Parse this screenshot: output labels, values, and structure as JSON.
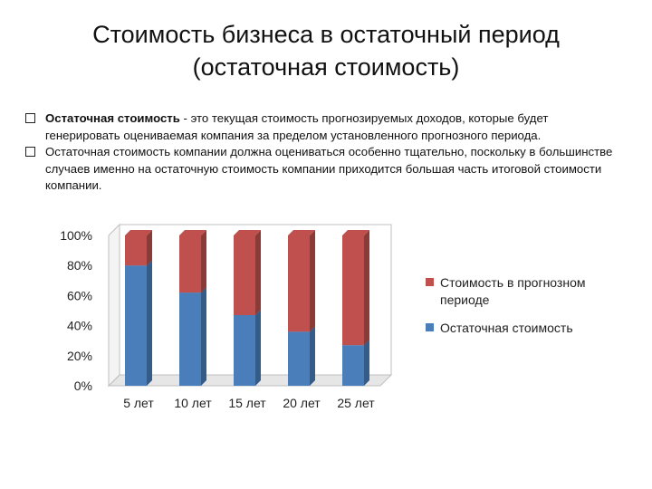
{
  "slide": {
    "title_line1": "Стоимость бизнеса в остаточный период",
    "title_line2": "(остаточная стоимость)",
    "bullets": [
      {
        "bold": "Остаточная стоимость",
        "text": " - это текущая стоимость прогнозируемых доходов, которые будет генерировать оцениваемая компания за пределом установленного прогнозного периода."
      },
      {
        "bold": "",
        "text": "Остаточная стоимость компании должна оцениваться особенно тщательно, поскольку в большинстве случаев именно на остаточную стоимость компании приходится большая часть итоговой стоимости компании."
      }
    ]
  },
  "chart_data": {
    "type": "bar",
    "stacked": true,
    "percent": true,
    "categories": [
      "5 лет",
      "10 лет",
      "15 лет",
      "20 лет",
      "25 лет"
    ],
    "series": [
      {
        "name": "Остаточная стоимость",
        "values": [
          80,
          62,
          47,
          36,
          27
        ],
        "color": "#4a7ebb"
      },
      {
        "name": "Стоимость в прогнозном периоде",
        "values": [
          20,
          38,
          53,
          64,
          73
        ],
        "color": "#c0504d"
      }
    ],
    "yticks": [
      "0%",
      "20%",
      "40%",
      "60%",
      "80%",
      "100%"
    ],
    "ylim": [
      0,
      100
    ],
    "legend_position": "right",
    "grid": false
  }
}
